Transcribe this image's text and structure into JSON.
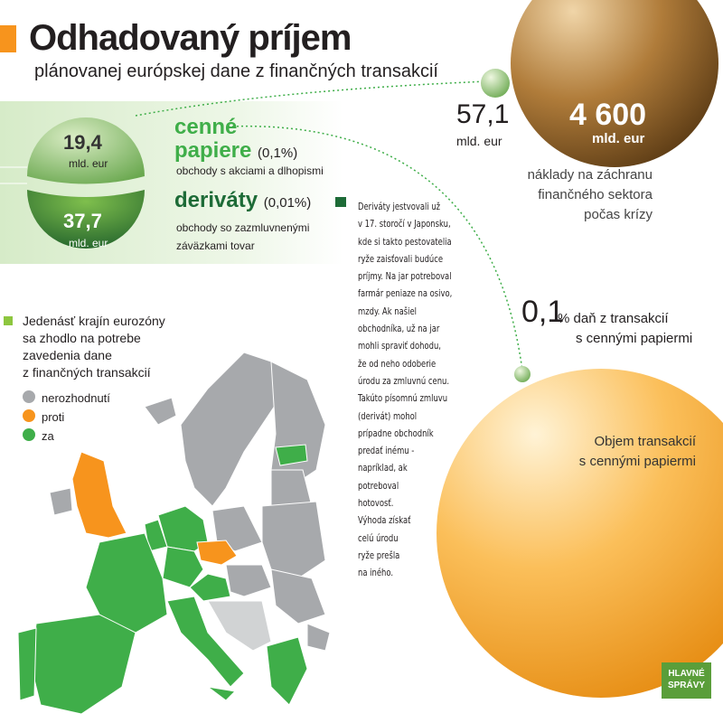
{
  "header": {
    "title": "Odhadovaný príjem",
    "subtitle": "plánovanej európskej dane z finančných transakcií"
  },
  "revenue_sphere": {
    "top": {
      "value": "19,4",
      "unit": "mld. eur"
    },
    "bottom": {
      "value": "37,7",
      "unit": "mld. eur"
    }
  },
  "instruments": [
    {
      "name_lines": [
        "cenné",
        "papiere"
      ],
      "rate": "(0,1%)",
      "description": "obchody s akciami a dlhopismi"
    },
    {
      "name_lines": [
        "deriváty"
      ],
      "rate": "(0,01%)",
      "description_lines": [
        "obchody so zazmluvnenými",
        "záväzkami tovar"
      ]
    }
  ],
  "small_ball": {
    "value": "57,1",
    "unit": "mld. eur"
  },
  "big_ball": {
    "value": "4 600",
    "unit": "mld. eur",
    "caption_lines": [
      "náklady na záchranu",
      "finančného sektora",
      "počas krízy"
    ]
  },
  "note_lines": [
    "Deriváty jestvovali už",
    "v 17. storočí v Japonsku,",
    "kde si takto pestovatelia",
    "ryže zaisťovali budúce",
    "príjmy. Na jar potreboval",
    "farmár peniaze na osivo,",
    "mzdy. Ak našiel",
    "obchodníka, už na jar",
    "mohli spraviť dohodu,",
    "že od neho odoberie",
    "úrodu za zmluvnú cenu.",
    "Takúto písomnú zmluvu",
    "(derivát) mohol",
    "prípadne obchodník",
    "predať inému -",
    "napríklad, ak",
    "potreboval",
    "hotovosť.",
    "Výhoda získať",
    "celú úrodu",
    "ryže prešla",
    "na iného."
  ],
  "tax": {
    "value": "0,1",
    "text_lines": [
      "% daň z transakcií",
      "s cennými papiermi"
    ]
  },
  "orange_ball": {
    "caption_lines": [
      "Objem transakcií",
      "s cennými papiermi"
    ]
  },
  "map_legend": {
    "title_lines": [
      "Jedenásť krajín eurozóny",
      "sa zhodlo na potrebe",
      "zavedenia dane",
      "z finančných transakcií"
    ],
    "items": [
      {
        "label": "nerozhodnutí",
        "color": "#a7a9ac"
      },
      {
        "label": "proti",
        "color": "#f7941d"
      },
      {
        "label": "za",
        "color": "#3fae49"
      }
    ]
  },
  "logo": {
    "lines": [
      "HLAVNÉ",
      "SPRÁVY"
    ]
  }
}
